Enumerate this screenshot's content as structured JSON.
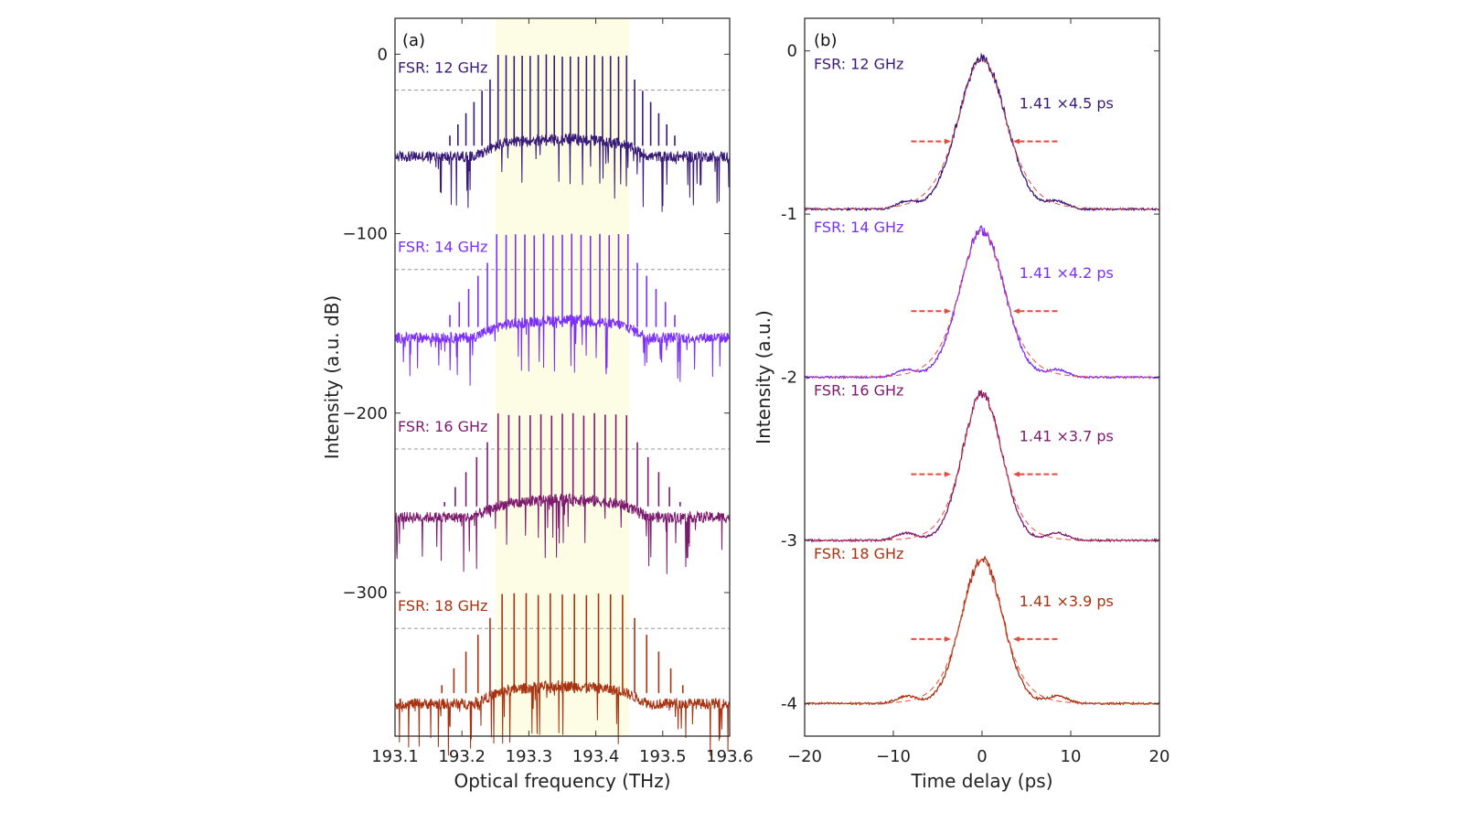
{
  "chart_data": [
    {
      "panel": "(a)",
      "type": "line",
      "xlabel": "Optical frequency (THz)",
      "ylabel": "Intensity (a.u. dB)",
      "xlim": [
        193.1,
        193.6
      ],
      "ylim": [
        -380,
        20
      ],
      "xticks": [
        {
          "value": 193.1,
          "label": "193.1"
        },
        {
          "value": 193.2,
          "label": "193.2"
        },
        {
          "value": 193.3,
          "label": "193.3"
        },
        {
          "value": 193.4,
          "label": "193.4"
        },
        {
          "value": 193.5,
          "label": "193.5"
        },
        {
          "value": 193.6,
          "label": "193.6"
        }
      ],
      "yticks": [
        {
          "value": 0,
          "label": "0"
        },
        {
          "value": -100,
          "label": "−100"
        },
        {
          "value": -200,
          "label": "−200"
        },
        {
          "value": -300,
          "label": "−300"
        }
      ],
      "highlight_band": {
        "x": [
          193.25,
          193.45
        ],
        "color": "#fdfde6"
      },
      "series": [
        {
          "name": "FSR: 12 GHz",
          "fsr_ghz": 12,
          "offset_db": 0,
          "color": "#3a1a78",
          "peak_db": 0,
          "floor_db": -57,
          "reference_line_db": -20
        },
        {
          "name": "FSR: 14 GHz",
          "fsr_ghz": 14,
          "offset_db": -100,
          "color": "#7b2ff7",
          "peak_db": -100,
          "floor_db": -158,
          "reference_line_db": -120
        },
        {
          "name": "FSR: 16 GHz",
          "fsr_ghz": 16,
          "offset_db": -200,
          "color": "#7d1a6e",
          "peak_db": -200,
          "floor_db": -258,
          "reference_line_db": -220
        },
        {
          "name": "FSR: 18 GHz",
          "fsr_ghz": 18,
          "offset_db": -300,
          "color": "#a63312",
          "peak_db": -300,
          "floor_db": -362,
          "reference_line_db": -320
        }
      ]
    },
    {
      "panel": "(b)",
      "type": "line",
      "xlabel": "Time delay (ps)",
      "ylabel": "Intensity (a.u.)",
      "xlim": [
        -20,
        20
      ],
      "ylim": [
        -4.2,
        0.2
      ],
      "xticks": [
        {
          "value": -20,
          "label": "−20"
        },
        {
          "value": -10,
          "label": "−10"
        },
        {
          "value": 0,
          "label": "0"
        },
        {
          "value": 10,
          "label": "10"
        },
        {
          "value": 20,
          "label": "20"
        }
      ],
      "yticks": [
        {
          "value": 0,
          "label": "0"
        },
        {
          "value": -1,
          "label": "-1"
        },
        {
          "value": -2,
          "label": "-2"
        },
        {
          "value": -3,
          "label": "-3"
        },
        {
          "value": -4,
          "label": "-4"
        }
      ],
      "fit_color": "#e84a3c",
      "series": [
        {
          "name": "FSR: 12 GHz",
          "offset": 0,
          "baseline": -0.97,
          "peak": -0.05,
          "fwhm_ps": 6.35,
          "color": "#3a1a78",
          "fwhm_label": "1.41 ×4.5 ps"
        },
        {
          "name": "FSR: 14 GHz",
          "offset": -1,
          "baseline": -2.0,
          "peak": -1.1,
          "fwhm_ps": 5.9,
          "color": "#7b2ff7",
          "fwhm_label": "1.41 ×4.2 ps"
        },
        {
          "name": "FSR: 16 GHz",
          "offset": -2,
          "baseline": -3.0,
          "peak": -2.1,
          "fwhm_ps": 5.2,
          "color": "#7d1a6e",
          "fwhm_label": "1.41 ×3.7 ps"
        },
        {
          "name": "FSR: 18 GHz",
          "offset": -3,
          "baseline": -4.0,
          "peak": -3.12,
          "fwhm_ps": 5.5,
          "color": "#a63312",
          "fwhm_label": "1.41 ×3.9 ps"
        }
      ]
    }
  ]
}
